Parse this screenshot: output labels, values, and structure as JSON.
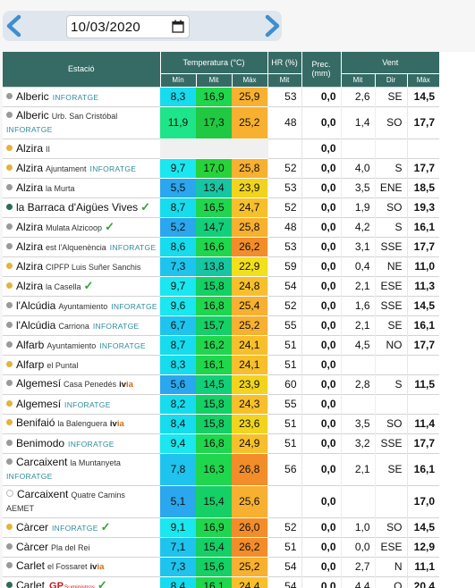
{
  "date": "10/03/2020",
  "headers": {
    "station": "Estació",
    "temperature": "Temperatura (°C)",
    "hr": "HR (%)",
    "prec": "Prec.\n(mm)",
    "wind": "Vent",
    "t_min": "Mín",
    "t_mit": "Mit",
    "t_max": "Màx",
    "hr_mit": "Mit",
    "w_mit": "Mit",
    "w_dir": "Dir",
    "w_max": "Màx"
  },
  "colors": {
    "header_bg": "#366b65",
    "dot_grey": "#9a9a9a",
    "dot_orange": "#e4b33c",
    "dot_teal": "#2f6b55"
  },
  "rows": [
    {
      "name": "Alberic",
      "sub": "",
      "badge": "INFORATGE",
      "dot": "grey",
      "tmin": "8,3",
      "tmit": "16,9",
      "tmax": "25,9",
      "hr": "53",
      "prec": "0,0",
      "wmit": "2,6",
      "dir": "SE",
      "wmax": "14,5",
      "cmin": "#16dced",
      "cmit": "#20d64d",
      "cmax": "#f8b030",
      "lines": 1
    },
    {
      "name": "Alberic",
      "sub": "Urb. San Cristóbal",
      "badge": "INFORATGE",
      "dot": "grey",
      "tmin": "11,9",
      "tmit": "17,3",
      "tmax": "25,2",
      "hr": "48",
      "prec": "0,0",
      "wmit": "1,4",
      "dir": "SO",
      "wmax": "17,7",
      "cmin": "#1ee58a",
      "cmit": "#21c842",
      "cmax": "#f8b030",
      "lines": 2
    },
    {
      "name": "Alzira",
      "sub": "II",
      "badge": "",
      "dot": "orange",
      "tmin": "",
      "tmit": "",
      "tmax": "",
      "hr": "",
      "prec": "0,0",
      "wmit": "",
      "dir": "",
      "wmax": "",
      "cmin": "#f0f0f0",
      "cmit": "#f0f0f0",
      "cmax": "#f0f0f0",
      "lines": 1
    },
    {
      "name": "Alzira",
      "sub": "Ajuntament",
      "badge": "INFORATGE",
      "dot": "orange",
      "tmin": "9,7",
      "tmit": "17,0",
      "tmax": "25,8",
      "hr": "52",
      "prec": "0,0",
      "wmit": "4,0",
      "dir": "S",
      "wmax": "17,7",
      "cmin": "#1ae7f0",
      "cmit": "#28d23a",
      "cmax": "#f8b030",
      "lines": 1
    },
    {
      "name": "Alzira",
      "sub": "la Murta",
      "badge": "",
      "dot": "grey",
      "tmin": "5,5",
      "tmit": "13,4",
      "tmax": "23,9",
      "hr": "53",
      "prec": "0,0",
      "wmit": "3,5",
      "dir": "ENE",
      "wmax": "18,5",
      "cmin": "#2aa7ee",
      "cmit": "#16c6a2",
      "cmax": "#f2d41e",
      "lines": 1
    },
    {
      "name": "la Barraca d'Aigües Vives",
      "sub": "",
      "badge": "check",
      "dot": "teal",
      "tmin": "8,7",
      "tmit": "16,5",
      "tmax": "24,7",
      "hr": "52",
      "prec": "0,0",
      "wmit": "1,9",
      "dir": "SO",
      "wmax": "19,3",
      "cmin": "#16dced",
      "cmit": "#20d64d",
      "cmax": "#f7bf2c",
      "lines": 1
    },
    {
      "name": "Alzira",
      "sub": "Mulata Alzicoop",
      "badge": "check",
      "dot": "grey",
      "tmin": "5,2",
      "tmit": "14,7",
      "tmax": "25,8",
      "hr": "48",
      "prec": "0,0",
      "wmit": "4,2",
      "dir": "S",
      "wmax": "16,1",
      "cmin": "#2aa7ee",
      "cmit": "#12cf7a",
      "cmax": "#f8b030",
      "lines": 1
    },
    {
      "name": "Alzira",
      "sub": "est l'Alquenència",
      "badge": "INFORATGE",
      "dot": "grey",
      "tmin": "8,6",
      "tmit": "16,6",
      "tmax": "26,2",
      "hr": "53",
      "prec": "0,0",
      "wmit": "3,1",
      "dir": "SSE",
      "wmax": "17,7",
      "cmin": "#16dced",
      "cmit": "#20d64d",
      "cmax": "#f38d2a",
      "lines": 1
    },
    {
      "name": "Alzira",
      "sub": "CIPFP Luis Suñer Sanchis",
      "badge": "",
      "dot": "orange",
      "tmin": "7,3",
      "tmit": "13,8",
      "tmax": "22,9",
      "hr": "59",
      "prec": "0,0",
      "wmit": "0,4",
      "dir": "NE",
      "wmax": "11,0",
      "cmin": "#1ec4ee",
      "cmit": "#16c6a2",
      "cmax": "#f3e01c",
      "lines": 1
    },
    {
      "name": "Alzira",
      "sub": "la Casella",
      "badge": "check",
      "dot": "orange",
      "tmin": "9,7",
      "tmit": "15,8",
      "tmax": "24,8",
      "hr": "54",
      "prec": "0,0",
      "wmit": "2,1",
      "dir": "ESE",
      "wmax": "11,3",
      "cmin": "#1ae7f0",
      "cmit": "#14d065",
      "cmax": "#f7bf2c",
      "lines": 1
    },
    {
      "name": "l'Alcúdia",
      "sub": "Ayuntamiento",
      "badge": "INFORATGE",
      "dot": "grey",
      "tmin": "9,6",
      "tmit": "16,8",
      "tmax": "25,4",
      "hr": "52",
      "prec": "0,0",
      "wmit": "1,6",
      "dir": "SSE",
      "wmax": "14,5",
      "cmin": "#1ae7f0",
      "cmit": "#20d64d",
      "cmax": "#f8b030",
      "lines": 1
    },
    {
      "name": "l'Alcúdia",
      "sub": "Carriona",
      "badge": "INFORATGE",
      "dot": "grey",
      "tmin": "6,7",
      "tmit": "15,7",
      "tmax": "25,2",
      "hr": "55",
      "prec": "0,0",
      "wmit": "2,1",
      "dir": "SE",
      "wmax": "16,1",
      "cmin": "#1ec4ee",
      "cmit": "#14d065",
      "cmax": "#f8b030",
      "lines": 1
    },
    {
      "name": "Alfarb",
      "sub": "Ayuntamiento",
      "badge": "INFORATGE",
      "dot": "grey",
      "tmin": "8,7",
      "tmit": "16,2",
      "tmax": "24,1",
      "hr": "51",
      "prec": "0,0",
      "wmit": "4,5",
      "dir": "NO",
      "wmax": "17,7",
      "cmin": "#16dced",
      "cmit": "#20d64d",
      "cmax": "#f7bf2c",
      "lines": 1
    },
    {
      "name": "Alfarp",
      "sub": "el Puntal",
      "badge": "",
      "dot": "orange",
      "tmin": "8,3",
      "tmit": "16,1",
      "tmax": "24,1",
      "hr": "51",
      "prec": "0,0",
      "wmit": "",
      "dir": "",
      "wmax": "",
      "cmin": "#16dced",
      "cmit": "#20d64d",
      "cmax": "#f7bf2c",
      "lines": 1
    },
    {
      "name": "Algemesí",
      "sub": "Casa Penedés",
      "badge": "ivia",
      "dot": "grey",
      "tmin": "5,6",
      "tmit": "14,5",
      "tmax": "23,9",
      "hr": "60",
      "prec": "0,0",
      "wmit": "2,8",
      "dir": "S",
      "wmax": "11,5",
      "cmin": "#2aa7ee",
      "cmit": "#12cf7a",
      "cmax": "#f2d41e",
      "lines": 1
    },
    {
      "name": "Algemesí",
      "sub": "",
      "badge": "INFORATGE",
      "dot": "orange",
      "tmin": "8,2",
      "tmit": "15,8",
      "tmax": "24,3",
      "hr": "55",
      "prec": "0,0",
      "wmit": "",
      "dir": "",
      "wmax": "",
      "cmin": "#16dced",
      "cmit": "#14d065",
      "cmax": "#f7bf2c",
      "lines": 1
    },
    {
      "name": "Benifaió",
      "sub": "la Balenguera",
      "badge": "ivia",
      "dot": "orange",
      "tmin": "8,4",
      "tmit": "15,8",
      "tmax": "23,6",
      "hr": "51",
      "prec": "0,0",
      "wmit": "3,5",
      "dir": "SO",
      "wmax": "11,4",
      "cmin": "#16dced",
      "cmit": "#14d065",
      "cmax": "#f2d41e",
      "lines": 1
    },
    {
      "name": "Benimodo",
      "sub": "",
      "badge": "INFORATGE",
      "dot": "grey",
      "tmin": "9,4",
      "tmit": "16,8",
      "tmax": "24,9",
      "hr": "51",
      "prec": "0,0",
      "wmit": "3,2",
      "dir": "SSE",
      "wmax": "17,7",
      "cmin": "#1ae7f0",
      "cmit": "#20d64d",
      "cmax": "#f7bf2c",
      "lines": 1
    },
    {
      "name": "Carcaixent",
      "sub": "la Muntanyeta",
      "badge": "INFORATGE",
      "dot": "grey",
      "tmin": "7,8",
      "tmit": "16,3",
      "tmax": "26,8",
      "hr": "56",
      "prec": "0,0",
      "wmit": "2,1",
      "dir": "SE",
      "wmax": "16,1",
      "cmin": "#1ec4ee",
      "cmit": "#20d64d",
      "cmax": "#f38d2a",
      "lines": 2
    },
    {
      "name": "Carcaixent",
      "sub": "Quatre Camins",
      "badge": "AEMET",
      "dot": "hollow",
      "tmin": "5,1",
      "tmit": "15,4",
      "tmax": "25,6",
      "hr": "",
      "prec": "0,0",
      "wmit": "",
      "dir": "",
      "wmax": "17,0",
      "cmin": "#2aa7ee",
      "cmit": "#14d065",
      "cmax": "#f8b030",
      "lines": 2
    },
    {
      "name": "Càrcer",
      "sub": "",
      "badge": "INFORATGE-check",
      "dot": "orange",
      "tmin": "9,1",
      "tmit": "16,9",
      "tmax": "26,0",
      "hr": "52",
      "prec": "0,0",
      "wmit": "1,0",
      "dir": "SO",
      "wmax": "14,5",
      "cmin": "#1ae7f0",
      "cmit": "#20d64d",
      "cmax": "#f38d2a",
      "lines": 1
    },
    {
      "name": "Càrcer",
      "sub": "Pla del Rei",
      "badge": "",
      "dot": "grey",
      "tmin": "7,1",
      "tmit": "15,4",
      "tmax": "26,2",
      "hr": "51",
      "prec": "0,0",
      "wmit": "0,0",
      "dir": "ESE",
      "wmax": "12,9",
      "cmin": "#1ec4ee",
      "cmit": "#14d065",
      "cmax": "#f38d2a",
      "lines": 1
    },
    {
      "name": "Carlet",
      "sub": "el Fossaret",
      "badge": "ivia",
      "dot": "grey",
      "tmin": "7,3",
      "tmit": "15,6",
      "tmax": "25,2",
      "hr": "54",
      "prec": "0,0",
      "wmit": "2,7",
      "dir": "N",
      "wmax": "11,1",
      "cmin": "#1ec4ee",
      "cmit": "#14d065",
      "cmax": "#f8b030",
      "lines": 1
    },
    {
      "name": "Carlet",
      "sub": "",
      "badge": "GP-check",
      "dot": "teal",
      "tmin": "8,4",
      "tmit": "16,1",
      "tmax": "24,4",
      "hr": "54",
      "prec": "0,0",
      "wmit": "4,4",
      "dir": "O",
      "wmax": "20,4",
      "cmin": "#16dced",
      "cmit": "#20d64d",
      "cmax": "#f7bf2c",
      "lines": 1
    }
  ],
  "badges": {
    "inforatge": "INFORATGE",
    "aemet": "AEMET",
    "ivia_iv": "iv",
    "ivia_ia": "ia",
    "gp": "GP",
    "gp_sub": "Suministros",
    "check": "✓"
  }
}
